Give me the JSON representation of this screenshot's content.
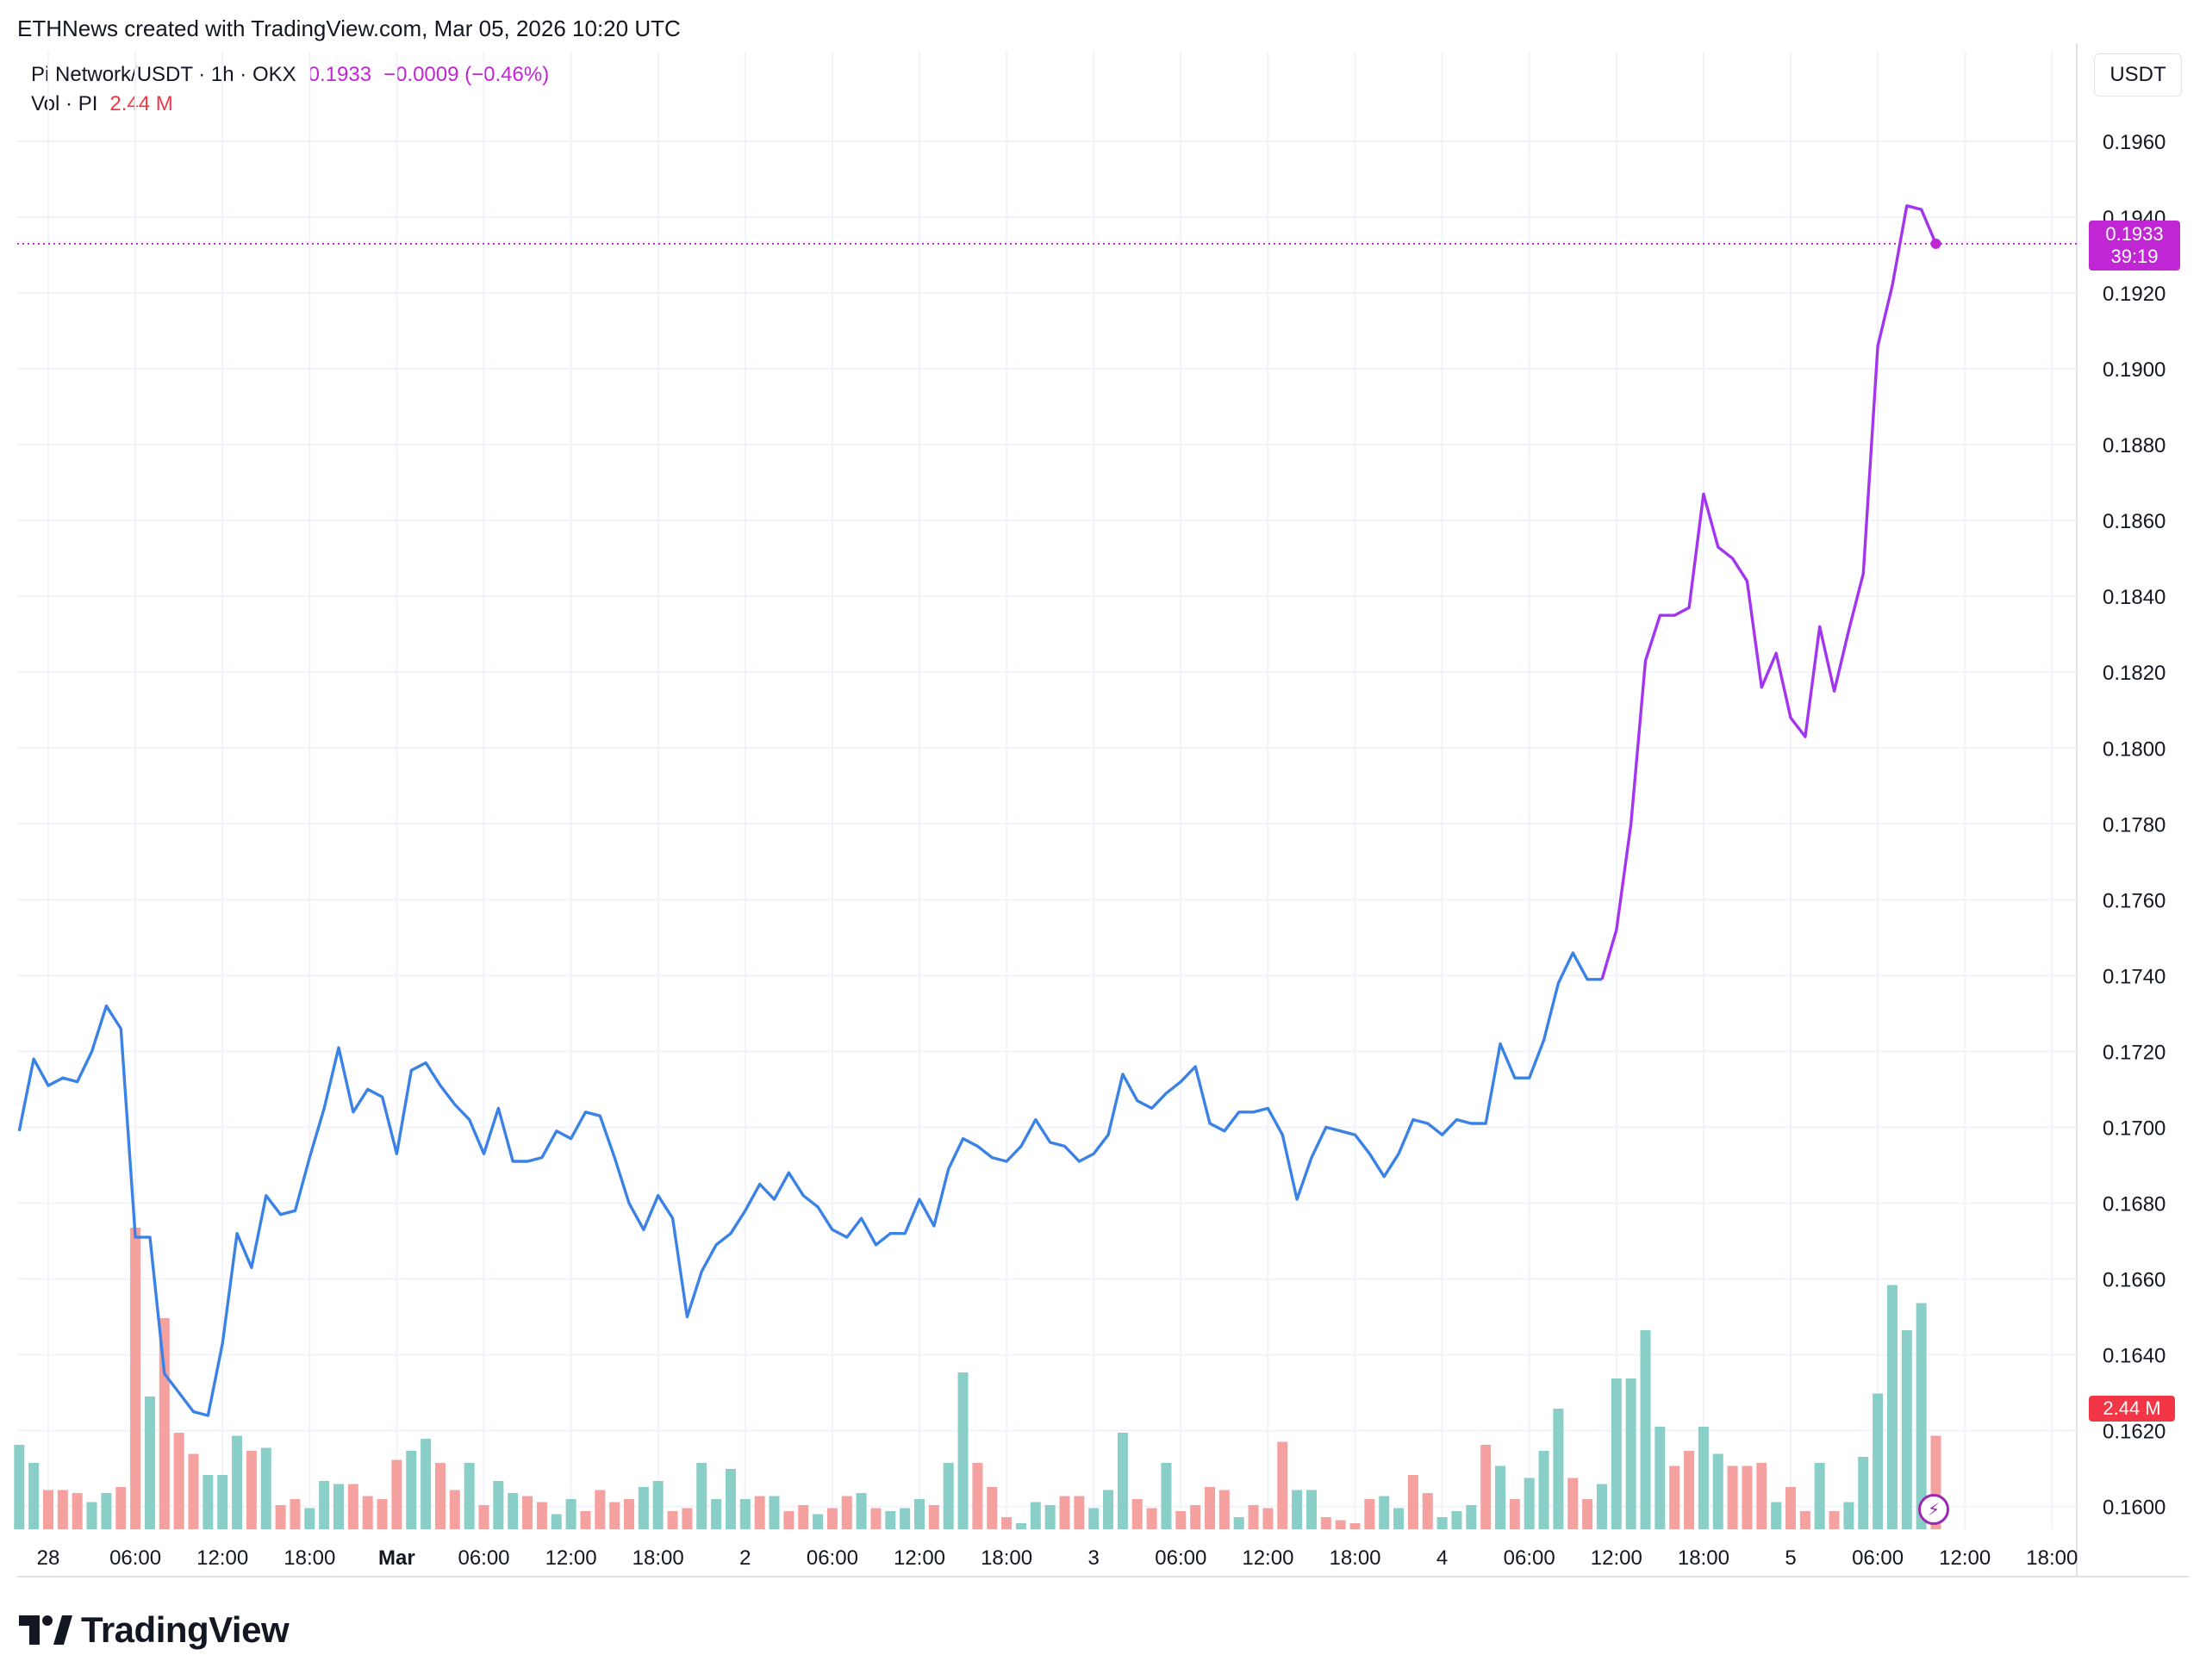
{
  "attribution": "ETHNews created with TradingView.com, Mar 05, 2026 10:20 UTC",
  "legend": {
    "symbol": "Pi Network/USDT · 1h · OKX",
    "last": "0.1933",
    "change": "−0.0009 (−0.46%)",
    "vol_label": "Vol · PI",
    "vol_value": "2.44 M"
  },
  "axis_unit": "USDT",
  "price_tag": {
    "price": "0.1933",
    "countdown": "39:19"
  },
  "vol_tag": "2.44 M",
  "footer_logo": "TradingView",
  "colors": {
    "line_blue": "#3b82e6",
    "line_purple": "#a335f0",
    "last_price": "#c026d3",
    "vol_up": "#89cfc7",
    "vol_down": "#f4a1a0",
    "vol_label_red": "#f23645",
    "grid": "#f0f3fa"
  },
  "chart_data": {
    "type": "line",
    "interval": "1h",
    "x_ticks": [
      "28",
      "06:00",
      "12:00",
      "18:00",
      "Mar",
      "06:00",
      "12:00",
      "18:00",
      "2",
      "06:00",
      "12:00",
      "18:00",
      "3",
      "06:00",
      "12:00",
      "18:00",
      "4",
      "06:00",
      "12:00",
      "18:00",
      "5",
      "06:00",
      "12:00",
      "18:00"
    ],
    "y_ticks": [
      "0.1960",
      "0.1940",
      "0.1920",
      "0.1900",
      "0.1880",
      "0.1860",
      "0.1840",
      "0.1820",
      "0.1800",
      "0.1780",
      "0.1760",
      "0.1740",
      "0.1720",
      "0.1700",
      "0.1680",
      "0.1660",
      "0.1640",
      "0.1620",
      "0.1600"
    ],
    "ylim": [
      0.1594,
      0.197
    ],
    "last_price": 0.1933,
    "series": [
      {
        "values": [
          0.1699,
          0.1718,
          0.1711,
          0.1713,
          0.1712,
          0.172,
          0.1732,
          0.1726,
          0.1671,
          0.1671,
          0.1635,
          0.163,
          0.1625,
          0.1624,
          0.1643,
          0.1672,
          0.1663,
          0.1682,
          0.1677,
          0.1678,
          0.1692,
          0.1705,
          0.1721,
          0.1704,
          0.171,
          0.1708,
          0.1693,
          0.1715,
          0.1717,
          0.1711,
          0.1706,
          0.1702,
          0.1693,
          0.1705,
          0.1691,
          0.1691,
          0.1692,
          0.1699,
          0.1697,
          0.1704,
          0.1703,
          0.1692,
          0.168,
          0.1673,
          0.1682,
          0.1676,
          0.165,
          0.1662,
          0.1669,
          0.1672,
          0.1678,
          0.1685,
          0.1681,
          0.1688,
          0.1682,
          0.1679,
          0.1673,
          0.1671,
          0.1676,
          0.1669,
          0.1672,
          0.1672,
          0.1681,
          0.1674,
          0.1689,
          0.1697,
          0.1695,
          0.1692,
          0.1691,
          0.1695,
          0.1702,
          0.1696,
          0.1695,
          0.1691,
          0.1693,
          0.1698,
          0.1714,
          0.1707,
          0.1705,
          0.1709,
          0.1712,
          0.1716,
          0.1701,
          0.1699,
          0.1704,
          0.1704,
          0.1705,
          0.1698,
          0.1681,
          0.1692,
          0.17,
          0.1699,
          0.1698,
          0.1693,
          0.1687,
          0.1693,
          0.1702,
          0.1701,
          0.1698,
          0.1702,
          0.1701,
          0.1701,
          0.1722,
          0.1713,
          0.1713,
          0.1723,
          0.1738,
          0.1746,
          0.1739,
          0.1739,
          0.1752,
          0.178,
          0.1823,
          0.1835,
          0.1835,
          0.1837,
          0.1867,
          0.1853,
          0.185,
          0.1844,
          0.1816,
          0.1825,
          0.1808,
          0.1803,
          0.1832,
          0.1815,
          0.1831,
          0.1846,
          0.1906,
          0.1922,
          0.1943,
          0.1942,
          0.1933
        ]
      }
    ],
    "volume": {
      "label": "Vol · PI",
      "values": [
        0.28,
        0.22,
        0.13,
        0.13,
        0.12,
        0.09,
        0.12,
        0.14,
        1.0,
        0.44,
        0.7,
        0.32,
        0.25,
        0.18,
        0.18,
        0.31,
        0.26,
        0.27,
        0.08,
        0.1,
        0.07,
        0.16,
        0.15,
        0.15,
        0.11,
        0.1,
        0.23,
        0.26,
        0.3,
        0.22,
        0.13,
        0.22,
        0.08,
        0.16,
        0.12,
        0.11,
        0.09,
        0.05,
        0.1,
        0.06,
        0.13,
        0.09,
        0.1,
        0.14,
        0.16,
        0.06,
        0.07,
        0.22,
        0.1,
        0.2,
        0.1,
        0.11,
        0.11,
        0.06,
        0.08,
        0.05,
        0.07,
        0.11,
        0.12,
        0.07,
        0.06,
        0.07,
        0.1,
        0.08,
        0.22,
        0.52,
        0.22,
        0.14,
        0.04,
        0.02,
        0.09,
        0.08,
        0.11,
        0.11,
        0.07,
        0.13,
        0.32,
        0.1,
        0.07,
        0.22,
        0.06,
        0.08,
        0.14,
        0.13,
        0.04,
        0.08,
        0.07,
        0.29,
        0.13,
        0.13,
        0.04,
        0.03,
        0.02,
        0.1,
        0.11,
        0.07,
        0.18,
        0.12,
        0.04,
        0.06,
        0.08,
        0.28,
        0.21,
        0.1,
        0.17,
        0.26,
        0.4,
        0.17,
        0.1,
        0.15,
        0.5,
        0.5,
        0.66,
        0.34,
        0.21,
        0.26,
        0.34,
        0.25,
        0.21,
        0.21,
        0.22,
        0.09,
        0.14,
        0.06,
        0.22,
        0.06,
        0.09,
        0.24,
        0.45,
        0.81,
        0.66,
        0.75,
        0.31
      ],
      "up": [
        1,
        1,
        0,
        0,
        0,
        1,
        1,
        0,
        0,
        1,
        0,
        0,
        0,
        1,
        1,
        1,
        0,
        1,
        0,
        0,
        1,
        1,
        1,
        0,
        0,
        0,
        0,
        1,
        1,
        0,
        0,
        1,
        0,
        1,
        1,
        0,
        0,
        1,
        1,
        0,
        0,
        0,
        0,
        1,
        1,
        0,
        0,
        1,
        1,
        1,
        1,
        0,
        1,
        0,
        0,
        1,
        0,
        0,
        1,
        0,
        1,
        1,
        1,
        0,
        1,
        1,
        0,
        0,
        0,
        1,
        1,
        1,
        0,
        0,
        1,
        1,
        1,
        0,
        0,
        1,
        0,
        0,
        0,
        0,
        1,
        0,
        0,
        0,
        1,
        1,
        0,
        0,
        0,
        0,
        1,
        1,
        0,
        0,
        1,
        1,
        1,
        0,
        1,
        0,
        1,
        1,
        1,
        0,
        0,
        1,
        1,
        1,
        1,
        1,
        0,
        0,
        1,
        1,
        0,
        0,
        0,
        1,
        0,
        0,
        1,
        0,
        1,
        1,
        1,
        1,
        1,
        1,
        0
      ]
    }
  }
}
